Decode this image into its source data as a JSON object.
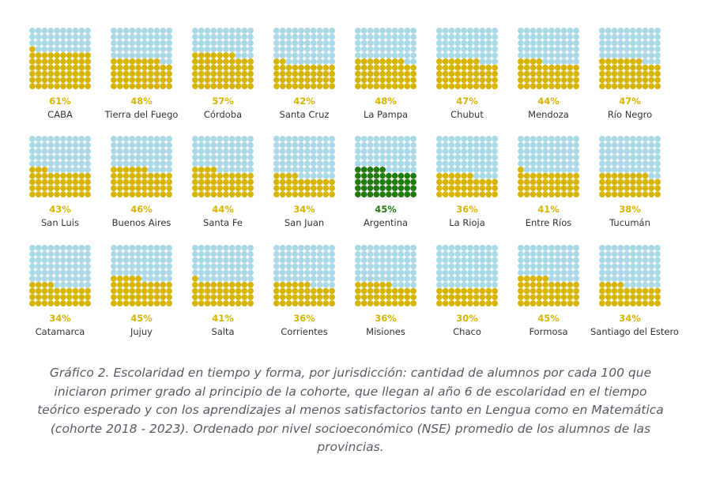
{
  "chart_data": {
    "type": "waffle",
    "grid": {
      "rows": 10,
      "cols": 10,
      "units_per_panel": 100
    },
    "fill_order": "bottom-up, left-to-right",
    "colors": {
      "filled": "#d6b400",
      "filled_highlight": "#237a0f",
      "empty": "#a9d8e6",
      "label_value": "#d6b400",
      "label_value_highlight": "#237a0f"
    },
    "items": [
      {
        "name": "CABA",
        "value": 61,
        "label": "61%"
      },
      {
        "name": "Tierra del Fuego",
        "value": 48,
        "label": "48%"
      },
      {
        "name": "Córdoba",
        "value": 57,
        "label": "57%"
      },
      {
        "name": "Santa Cruz",
        "value": 42,
        "label": "42%"
      },
      {
        "name": "La Pampa",
        "value": 48,
        "label": "48%"
      },
      {
        "name": "Chubut",
        "value": 47,
        "label": "47%"
      },
      {
        "name": "Mendoza",
        "value": 44,
        "label": "44%"
      },
      {
        "name": "Río Negro",
        "value": 47,
        "label": "47%"
      },
      {
        "name": "San Luis",
        "value": 43,
        "label": "43%"
      },
      {
        "name": "Buenos Aires",
        "value": 46,
        "label": "46%"
      },
      {
        "name": "Santa Fe",
        "value": 44,
        "label": "44%"
      },
      {
        "name": "San Juan",
        "value": 34,
        "label": "34%"
      },
      {
        "name": "Argentina",
        "value": 45,
        "label": "45%",
        "highlight": true
      },
      {
        "name": "La Rioja",
        "value": 36,
        "label": "36%"
      },
      {
        "name": "Entre Ríos",
        "value": 41,
        "label": "41%"
      },
      {
        "name": "Tucumán",
        "value": 38,
        "label": "38%"
      },
      {
        "name": "Catamarca",
        "value": 34,
        "label": "34%"
      },
      {
        "name": "Jujuy",
        "value": 45,
        "label": "45%"
      },
      {
        "name": "Salta",
        "value": 41,
        "label": "41%"
      },
      {
        "name": "Corrientes",
        "value": 36,
        "label": "36%"
      },
      {
        "name": "Misiones",
        "value": 36,
        "label": "36%"
      },
      {
        "name": "Chaco",
        "value": 30,
        "label": "30%"
      },
      {
        "name": "Formosa",
        "value": 45,
        "label": "45%"
      },
      {
        "name": "Santiago del Estero",
        "value": 34,
        "label": "34%"
      }
    ]
  },
  "caption": "Gráfico 2. Escolaridad en tiempo y forma, por jurisdicción: cantidad de alumnos por cada 100 que iniciaron primer grado al principio de la cohorte, que llegan al año 6 de escolaridad en el tiempo teórico esperado y con los aprendizajes al menos satisfactorios tanto en Lengua como en Matemática (cohorte 2018 - 2023). Ordenado por nivel socioeconómico (NSE) promedio de los alumnos de las provincias."
}
